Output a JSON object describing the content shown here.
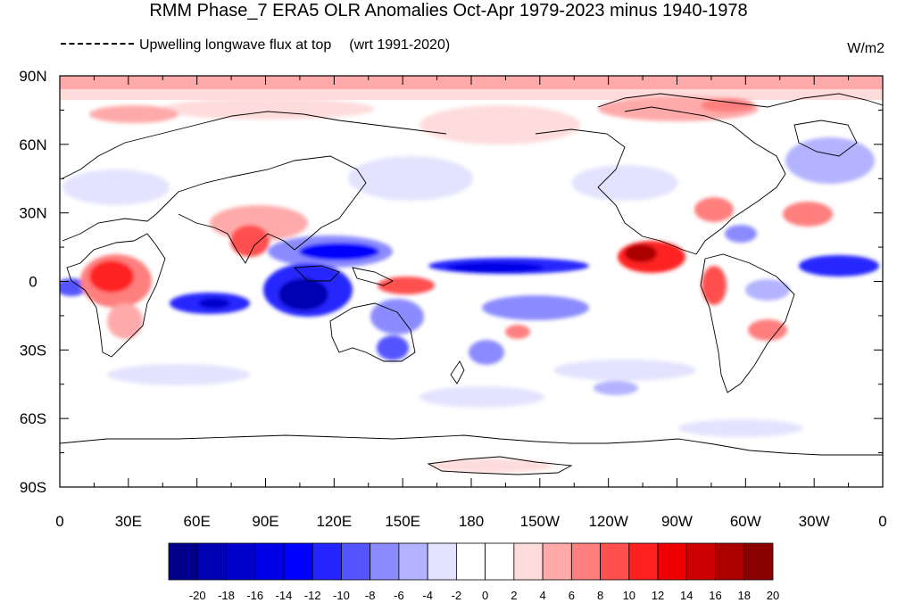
{
  "title": "RMM Phase_7 ERA5 OLR Anomalies Oct-Apr 1979-2023 minus 1940-1978",
  "subtitle": "Upwelling longwave flux at top",
  "subtitle_note": "(wrt 1991-2020)",
  "units": "W/m2",
  "lat_labels": [
    "90N",
    "60N",
    "30N",
    "0",
    "30S",
    "60S",
    "90S"
  ],
  "lon_labels": [
    "0",
    "30E",
    "60E",
    "90E",
    "120E",
    "150E",
    "180",
    "150W",
    "120W",
    "90W",
    "60W",
    "30W",
    "0"
  ],
  "colorbar": {
    "labels": [
      "-20",
      "-18",
      "-16",
      "-14",
      "-12",
      "-10",
      "-8",
      "-6",
      "-4",
      "-2",
      "0",
      "2",
      "4",
      "6",
      "8",
      "10",
      "12",
      "14",
      "16",
      "18",
      "20"
    ],
    "colors": [
      "#00008b",
      "#0000b3",
      "#0000cd",
      "#0000e6",
      "#0000ff",
      "#2525ff",
      "#5555ff",
      "#8b8bff",
      "#b3b3ff",
      "#e3e3ff",
      "#ffffff",
      "#ffffff",
      "#ffdcdc",
      "#ffaaaa",
      "#ff7f7f",
      "#ff4f4f",
      "#ff2020",
      "#ee0000",
      "#cc0000",
      "#aa0000",
      "#8b0000"
    ]
  },
  "colors": {
    "positive": "#ff2020",
    "negative": "#0000ff",
    "coast": "#000000"
  }
}
